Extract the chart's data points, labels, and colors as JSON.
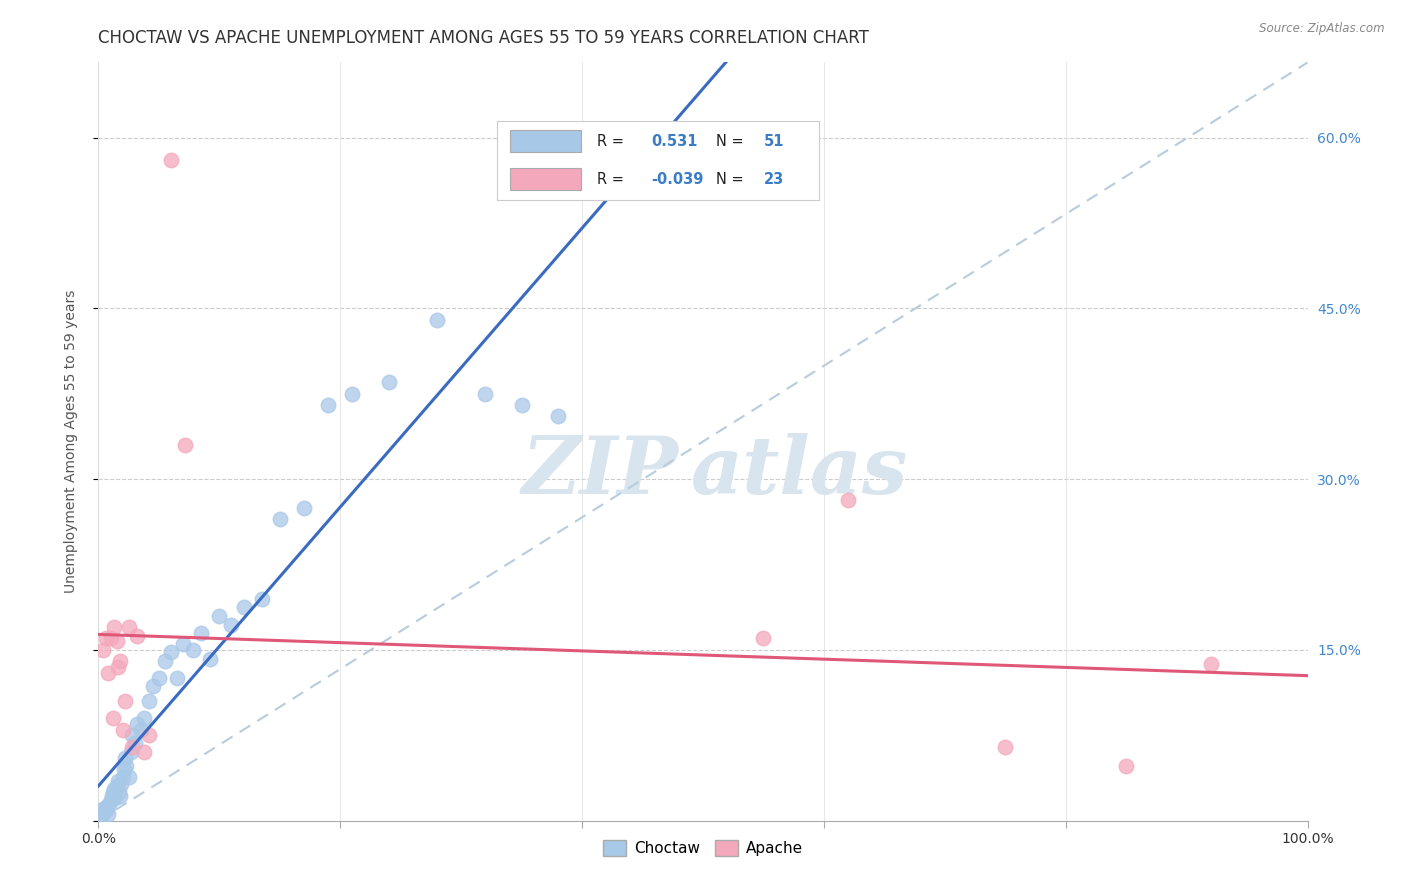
{
  "title": "CHOCTAW VS APACHE UNEMPLOYMENT AMONG AGES 55 TO 59 YEARS CORRELATION CHART",
  "source": "Source: ZipAtlas.com",
  "xlabel": "",
  "ylabel": "Unemployment Among Ages 55 to 59 years",
  "xlim": [
    0,
    1.0
  ],
  "ylim": [
    0,
    0.666
  ],
  "xticks": [
    0.0,
    0.2,
    0.4,
    0.6,
    0.8,
    1.0
  ],
  "xticklabels": [
    "0.0%",
    "",
    "",
    "",
    "",
    "100.0%"
  ],
  "ytick_positions": [
    0.0,
    0.15,
    0.3,
    0.45,
    0.6
  ],
  "yticklabels": [
    "",
    "15.0%",
    "30.0%",
    "45.0%",
    "60.0%"
  ],
  "choctaw_color": "#A8C8E8",
  "apache_color": "#F4A8BC",
  "choctaw_line_color": "#3A6BC0",
  "apache_line_color": "#E05878",
  "dashed_line_color": "#B8CCDC",
  "legend_R_choctaw": "0.531",
  "legend_N_choctaw": "51",
  "legend_R_apache": "-0.039",
  "legend_N_apache": "23",
  "choctaw_x": [
    0.003,
    0.004,
    0.005,
    0.006,
    0.007,
    0.008,
    0.009,
    0.01,
    0.011,
    0.012,
    0.013,
    0.014,
    0.015,
    0.016,
    0.017,
    0.018,
    0.019,
    0.02,
    0.021,
    0.022,
    0.023,
    0.025,
    0.027,
    0.028,
    0.03,
    0.032,
    0.035,
    0.038,
    0.042,
    0.045,
    0.05,
    0.055,
    0.06,
    0.065,
    0.07,
    0.078,
    0.085,
    0.092,
    0.1,
    0.11,
    0.12,
    0.135,
    0.15,
    0.17,
    0.19,
    0.21,
    0.24,
    0.28,
    0.32,
    0.35,
    0.38
  ],
  "choctaw_y": [
    0.005,
    0.01,
    0.008,
    0.012,
    0.01,
    0.006,
    0.015,
    0.018,
    0.022,
    0.025,
    0.028,
    0.02,
    0.03,
    0.035,
    0.025,
    0.022,
    0.032,
    0.038,
    0.045,
    0.055,
    0.048,
    0.038,
    0.06,
    0.075,
    0.068,
    0.085,
    0.08,
    0.09,
    0.105,
    0.118,
    0.125,
    0.14,
    0.148,
    0.125,
    0.155,
    0.15,
    0.165,
    0.142,
    0.18,
    0.172,
    0.188,
    0.195,
    0.265,
    0.275,
    0.365,
    0.375,
    0.385,
    0.44,
    0.375,
    0.365,
    0.355
  ],
  "apache_x": [
    0.004,
    0.006,
    0.008,
    0.01,
    0.012,
    0.013,
    0.015,
    0.016,
    0.018,
    0.02,
    0.022,
    0.025,
    0.028,
    0.032,
    0.038,
    0.042,
    0.06,
    0.072,
    0.55,
    0.62,
    0.75,
    0.85,
    0.92
  ],
  "apache_y": [
    0.15,
    0.16,
    0.13,
    0.16,
    0.09,
    0.17,
    0.158,
    0.135,
    0.14,
    0.08,
    0.105,
    0.17,
    0.065,
    0.162,
    0.06,
    0.075,
    0.58,
    0.33,
    0.16,
    0.282,
    0.065,
    0.048,
    0.138
  ],
  "background_color": "#FFFFFF",
  "watermark_zip": "ZIP",
  "watermark_atlas": "atlas",
  "watermark_color": "#D8E4EE",
  "grid_color": "#CCCCCC",
  "title_fontsize": 12,
  "axis_label_fontsize": 10,
  "tick_fontsize": 10
}
